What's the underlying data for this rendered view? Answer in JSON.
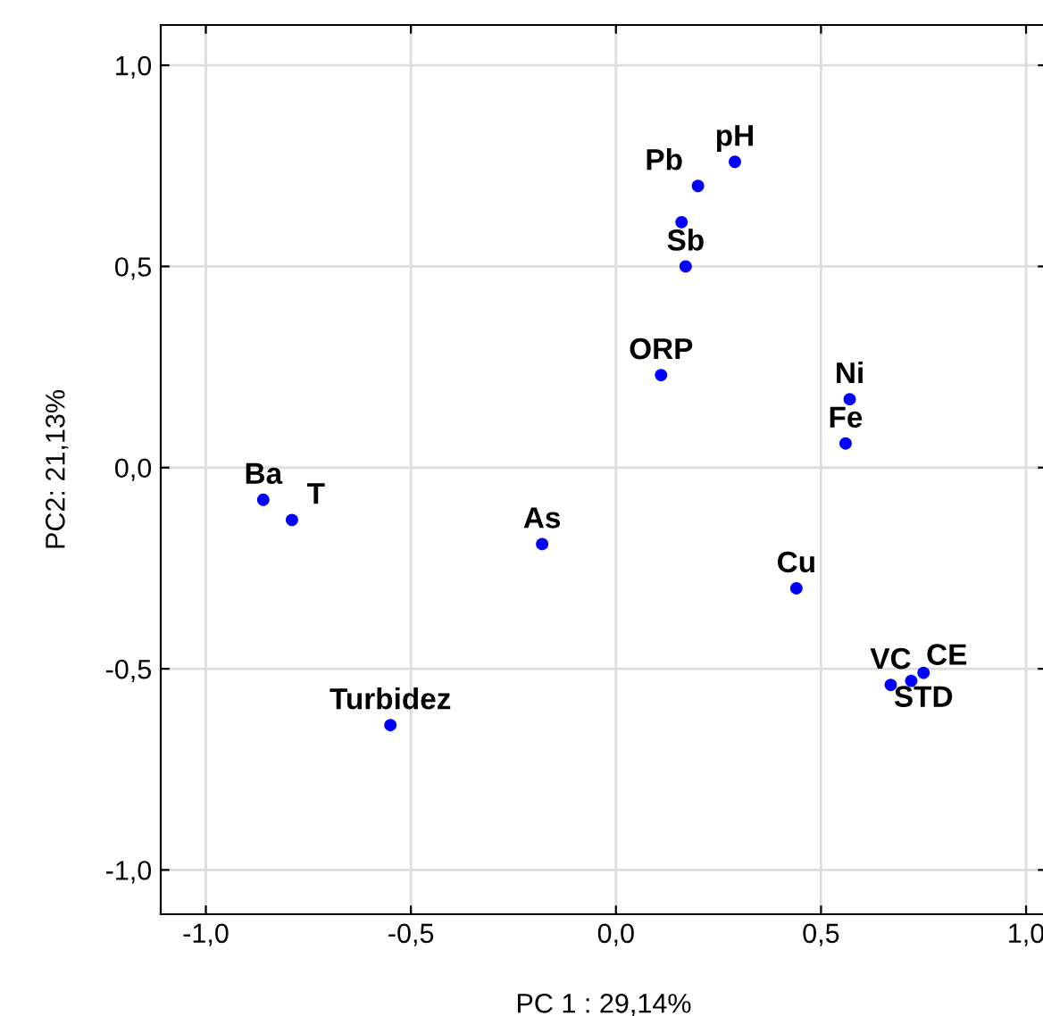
{
  "chart_data": {
    "type": "scatter",
    "xlabel": "PC 1 : 29,14%",
    "ylabel": "PC2: 21,13%",
    "x": [
      0.29,
      0.2,
      0.16,
      0.17,
      0.11,
      0.57,
      0.56,
      0.44,
      0.67,
      0.72,
      0.75,
      -0.86,
      -0.79,
      -0.18,
      -0.55
    ],
    "series": [
      {
        "color": "#0000ff",
        "values": [
          0.76,
          0.7,
          0.61,
          0.5,
          0.23,
          0.17,
          0.06,
          -0.3,
          -0.54,
          -0.53,
          -0.51,
          -0.08,
          -0.13,
          -0.19,
          -0.64
        ]
      }
    ],
    "annotations": [
      {
        "text": "pH",
        "x": 0.29,
        "y": 0.76
      },
      {
        "text": "Pb",
        "x": 0.2,
        "y": 0.7
      },
      {
        "text": "Sb",
        "x": 0.17,
        "y": 0.5
      },
      {
        "text": "ORP",
        "x": 0.11,
        "y": 0.23
      },
      {
        "text": "Ni",
        "x": 0.57,
        "y": 0.17
      },
      {
        "text": "Fe",
        "x": 0.56,
        "y": 0.06
      },
      {
        "text": "Cu",
        "x": 0.44,
        "y": -0.3
      },
      {
        "text": "VC",
        "x": 0.67,
        "y": -0.54
      },
      {
        "text": "CE",
        "x": 0.72,
        "y": -0.53
      },
      {
        "text": "STD",
        "x": 0.75,
        "y": -0.51
      },
      {
        "text": "Ba",
        "x": -0.86,
        "y": -0.08
      },
      {
        "text": "T",
        "x": -0.79,
        "y": -0.13
      },
      {
        "text": "As",
        "x": -0.18,
        "y": -0.19
      },
      {
        "text": "Turbidez",
        "x": -0.55,
        "y": -0.64
      }
    ],
    "xlim": [
      -1.11,
      1.05
    ],
    "ylim": [
      -1.11,
      1.1
    ],
    "xticks": [
      {
        "value": -1.0,
        "label": "-1,0"
      },
      {
        "value": -0.5,
        "label": "-0,5"
      },
      {
        "value": 0.0,
        "label": "0,0"
      },
      {
        "value": 0.5,
        "label": "0,5"
      },
      {
        "value": 1.0,
        "label": "1,0"
      }
    ],
    "yticks": [
      {
        "value": -1.0,
        "label": "-1,0"
      },
      {
        "value": -0.5,
        "label": "-0,5"
      },
      {
        "value": 0.0,
        "label": "0,0"
      },
      {
        "value": 0.5,
        "label": "0,5"
      },
      {
        "value": 1.0,
        "label": "1,0"
      }
    ],
    "grid": true,
    "marker": "circle"
  }
}
